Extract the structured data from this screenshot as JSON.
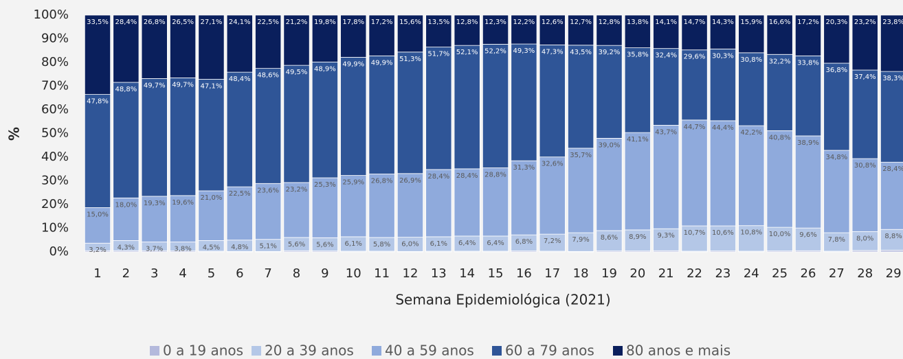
{
  "chart_data": {
    "type": "stacked_bar_percent",
    "ylabel": "%",
    "xlabel": "Semana Epidemiológica (2021)",
    "categories": [
      "1",
      "2",
      "3",
      "4",
      "5",
      "6",
      "7",
      "8",
      "9",
      "10",
      "11",
      "12",
      "13",
      "14",
      "15",
      "16",
      "17",
      "18",
      "19",
      "20",
      "21",
      "22",
      "23",
      "24",
      "25",
      "26",
      "27",
      "28",
      "29"
    ],
    "ylim": [
      0,
      100
    ],
    "yticks": [
      {
        "value": 0,
        "label": "0%"
      },
      {
        "value": 10,
        "label": "10%"
      },
      {
        "value": 20,
        "label": "20%"
      },
      {
        "value": 30,
        "label": "30%"
      },
      {
        "value": 40,
        "label": "40%"
      },
      {
        "value": 50,
        "label": "50%"
      },
      {
        "value": 60,
        "label": "60%"
      },
      {
        "value": 70,
        "label": "70%"
      },
      {
        "value": 80,
        "label": "80%"
      },
      {
        "value": 90,
        "label": "90%"
      },
      {
        "value": 100,
        "label": "100%"
      }
    ],
    "legend": "bottom",
    "series": [
      {
        "name": "0 a 19 anos",
        "color": "#b4b9dc",
        "values": [
          0.5,
          0.5,
          0.5,
          0.4,
          0.3,
          0.2,
          0.2,
          0.5,
          0.4,
          0.3,
          0.3,
          0.2,
          0.3,
          0.3,
          0.3,
          0.4,
          0.3,
          0.2,
          0.4,
          0.4,
          0.5,
          0.3,
          0.4,
          0.3,
          0.4,
          0.5,
          0.3,
          0.6,
          0.7
        ]
      },
      {
        "name": "20 a 39 anos",
        "color": "#b4c7e7",
        "values": [
          3.2,
          4.3,
          3.7,
          3.8,
          4.5,
          4.8,
          5.1,
          5.6,
          5.6,
          6.1,
          5.8,
          6.0,
          6.1,
          6.4,
          6.4,
          6.8,
          7.2,
          7.9,
          8.6,
          8.9,
          9.3,
          10.7,
          10.6,
          10.8,
          10.0,
          9.6,
          7.8,
          8.0,
          8.8
        ],
        "value_labels": [
          "3,2%",
          "4,3%",
          "3,7%",
          "3,8%",
          "4,5%",
          "4,8%",
          "5,1%",
          "5,6%",
          "5,6%",
          "6,1%",
          "5,8%",
          "6,0%",
          "6,1%",
          "6,4%",
          "6,4%",
          "6,8%",
          "7,2%",
          "7,9%",
          "8,6%",
          "8,9%",
          "9,3%",
          "10,7%",
          "10,6%",
          "10,8%",
          "10,0%",
          "9,6%",
          "7,8%",
          "8,0%",
          "8,8%"
        ]
      },
      {
        "name": "40 a 59 anos",
        "color": "#8faadc",
        "values": [
          15.0,
          18.0,
          19.3,
          19.6,
          21.0,
          22.5,
          23.6,
          23.2,
          25.3,
          25.9,
          26.8,
          26.9,
          28.4,
          28.4,
          28.8,
          31.3,
          32.6,
          35.7,
          39.0,
          41.1,
          43.7,
          44.7,
          44.4,
          42.2,
          40.8,
          38.9,
          34.8,
          30.8,
          28.4
        ],
        "value_labels": [
          "15,0%",
          "18,0%",
          "19,3%",
          "19,6%",
          "21,0%",
          "22,5%",
          "23,6%",
          "23,2%",
          "25,3%",
          "25,9%",
          "26,8%",
          "26,9%",
          "28,4%",
          "28,4%",
          "28,8%",
          "31,3%",
          "32,6%",
          "35,7%",
          "39,0%",
          "41,1%",
          "43,7%",
          "44,7%",
          "44,4%",
          "42,2%",
          "40,8%",
          "38,9%",
          "34,8%",
          "30,8%",
          "28,4%"
        ]
      },
      {
        "name": "60 a 79 anos",
        "color": "#2f5597",
        "values": [
          47.8,
          48.8,
          49.7,
          49.7,
          47.1,
          48.4,
          48.6,
          49.5,
          48.9,
          49.9,
          49.9,
          51.3,
          51.7,
          52.1,
          52.2,
          49.3,
          47.3,
          43.5,
          39.2,
          35.8,
          32.4,
          29.6,
          30.3,
          30.8,
          32.2,
          33.8,
          36.8,
          37.4,
          38.3
        ],
        "value_labels": [
          "47,8%",
          "48,8%",
          "49,7%",
          "49,7%",
          "47,1%",
          "48,4%",
          "48,6%",
          "49,5%",
          "48,9%",
          "49,9%",
          "49,9%",
          "51,3%",
          "51,7%",
          "52,1%",
          "52,2%",
          "49,3%",
          "47,3%",
          "43,5%",
          "39,2%",
          "35,8%",
          "32,4%",
          "29,6%",
          "30,3%",
          "30,8%",
          "32,2%",
          "33,8%",
          "36,8%",
          "37,4%",
          "38,3%"
        ]
      },
      {
        "name": "80 anos e mais",
        "color": "#0a1f5c",
        "values": [
          33.5,
          28.4,
          26.8,
          26.5,
          27.1,
          24.1,
          22.5,
          21.2,
          19.8,
          17.8,
          17.2,
          15.6,
          13.5,
          12.8,
          12.3,
          12.2,
          12.6,
          12.7,
          12.8,
          13.8,
          14.1,
          14.7,
          14.3,
          15.9,
          16.6,
          17.2,
          20.3,
          23.2,
          23.8
        ],
        "value_labels": [
          "33,5%",
          "28,4%",
          "26,8%",
          "26,5%",
          "27,1%",
          "24,1%",
          "22,5%",
          "21,2%",
          "19,8%",
          "17,8%",
          "17,2%",
          "15,6%",
          "13,5%",
          "12,8%",
          "12,3%",
          "12,2%",
          "12,6%",
          "12,7%",
          "12,8%",
          "13,8%",
          "14,1%",
          "14,7%",
          "14,3%",
          "15,9%",
          "16,6%",
          "17,2%",
          "20,3%",
          "23,2%",
          "23,8%"
        ]
      }
    ]
  }
}
